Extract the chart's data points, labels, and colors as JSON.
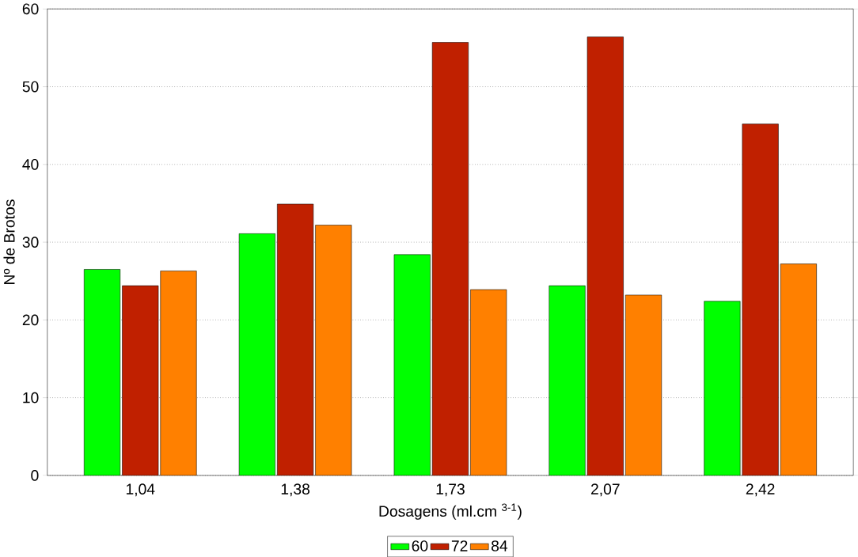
{
  "chart_data": {
    "type": "bar",
    "xlabel": "Dosagens (ml.cm $^{3-1}$)",
    "ylabel": "Nº de Brotos",
    "categories": [
      "1,04",
      "1,38",
      "1,73",
      "2,07",
      "2,42"
    ],
    "series": [
      {
        "name": "60",
        "color": "#00ff00",
        "values": [
          26.5,
          31.1,
          28.4,
          24.4,
          22.4
        ]
      },
      {
        "name": "72",
        "color": "#c02000",
        "values": [
          24.4,
          34.9,
          55.7,
          56.4,
          45.2
        ]
      },
      {
        "name": "84",
        "color": "#ff8000",
        "values": [
          26.3,
          32.2,
          23.9,
          23.2,
          27.2
        ]
      }
    ],
    "ylim": [
      0,
      60
    ],
    "yticks": [
      0,
      10,
      20,
      30,
      40,
      50,
      60
    ],
    "grid": "y",
    "legend": "bottom"
  }
}
